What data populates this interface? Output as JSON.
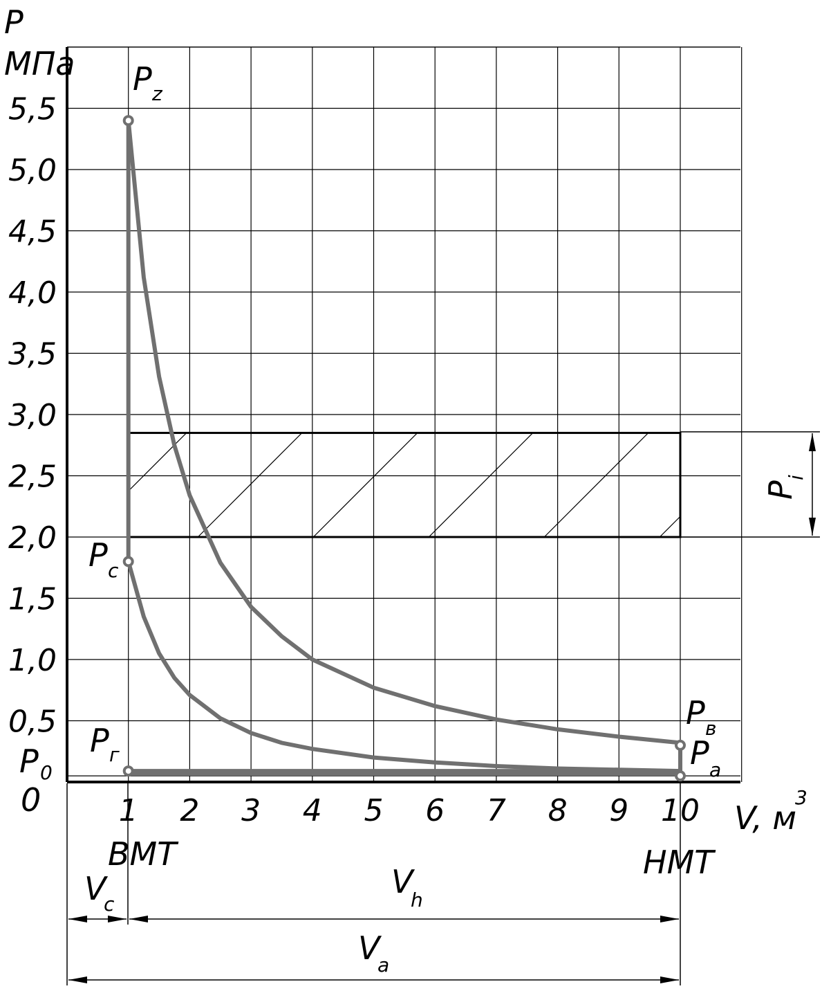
{
  "chart_data": {
    "type": "line",
    "ylabel": "P",
    "yunit": "МПа",
    "xlabel": "V, м",
    "xunit_sup": "3",
    "origin_label": "0",
    "y_ticks": [
      "5,5",
      "5,0",
      "4,5",
      "4,0",
      "3,5",
      "3,0",
      "2,5",
      "2,0",
      "1,5",
      "1,0",
      "0,5"
    ],
    "x_ticks": [
      "1",
      "2",
      "3",
      "4",
      "5",
      "6",
      "7",
      "8",
      "9",
      "10"
    ],
    "xlim": [
      0,
      11
    ],
    "ylim": [
      0,
      6.0
    ],
    "grid": true,
    "p0": {
      "label": "P",
      "sub": "0",
      "value": 0.05
    },
    "expansion_curve": {
      "x": [
        1.0,
        1.25,
        1.5,
        1.75,
        2.0,
        2.5,
        3.0,
        3.5,
        4.0,
        5.0,
        6.0,
        7.0,
        8.0,
        9.0,
        10.0
      ],
      "y": [
        5.4,
        4.12,
        3.31,
        2.75,
        2.34,
        1.79,
        1.43,
        1.19,
        1.0,
        0.77,
        0.62,
        0.51,
        0.43,
        0.37,
        0.32
      ]
    },
    "compression_curve": {
      "x": [
        1.0,
        1.25,
        1.5,
        1.75,
        2.0,
        2.5,
        3.0,
        3.5,
        4.0,
        5.0,
        6.0,
        7.0,
        8.0,
        9.0,
        10.0
      ],
      "y": [
        1.8,
        1.35,
        1.05,
        0.85,
        0.71,
        0.52,
        0.4,
        0.32,
        0.27,
        0.2,
        0.16,
        0.13,
        0.11,
        0.1,
        0.09
      ]
    },
    "exhaust_line": {
      "x": [
        1,
        10
      ],
      "y": [
        0.09,
        0.09
      ]
    },
    "points": [
      {
        "label": "P",
        "sub": "z",
        "x": 1,
        "y": 5.4
      },
      {
        "label": "P",
        "sub": "c",
        "x": 1,
        "y": 1.8
      },
      {
        "label": "P",
        "sub": "г",
        "x": 1,
        "y": 0.09
      },
      {
        "label": "P",
        "sub": "в",
        "x": 10,
        "y": 0.3
      },
      {
        "label": "P",
        "sub": "a",
        "x": 10,
        "y": 0.05
      }
    ],
    "mean_pressure_rect": {
      "x": [
        1,
        10
      ],
      "y": [
        2.0,
        2.85
      ],
      "label": "P",
      "sub": "i"
    },
    "annotations": {
      "tdc": "ВМТ",
      "bdc": "НМТ",
      "vc": {
        "label": "V",
        "sub": "c"
      },
      "vh": {
        "label": "V",
        "sub": "h"
      },
      "va": {
        "label": "V",
        "sub": "a"
      }
    }
  }
}
